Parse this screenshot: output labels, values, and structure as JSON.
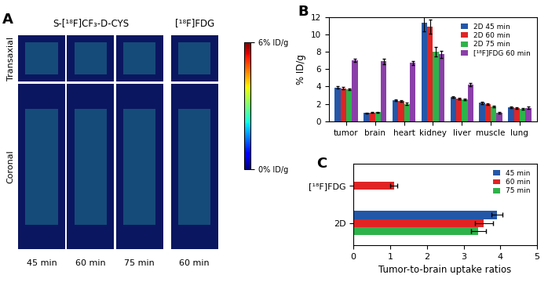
{
  "chart_data": [
    {
      "type": "image_panel",
      "panel": "A",
      "row_labels": [
        "Transaxial",
        "Coronal"
      ],
      "column_labels": [
        "45 min",
        "60 min",
        "75 min",
        "60 min"
      ],
      "groups": [
        {
          "name": "S-[¹⁸F]CF₃-D-CYS",
          "columns": 3
        },
        {
          "name": "[¹⁸F]FDG",
          "columns": 1
        }
      ],
      "colorbar": {
        "range": [
          0,
          6
        ],
        "ticks": [
          {
            "value": 0,
            "label": "0% ID/g"
          },
          {
            "value": 6,
            "label": "6% ID/g"
          }
        ]
      }
    },
    {
      "type": "bar",
      "panel": "B",
      "y_label": "% ID/g",
      "categories": [
        "tumor",
        "brain",
        "heart",
        "kidney",
        "liver",
        "muscle",
        "lung"
      ],
      "series": [
        {
          "name": "2D 45 min",
          "color": "#2457a8",
          "values": [
            3.9,
            0.95,
            2.4,
            11.3,
            2.75,
            2.1,
            1.6
          ],
          "errors": [
            0.15,
            0.05,
            0.1,
            1.0,
            0.1,
            0.1,
            0.1
          ]
        },
        {
          "name": "2D 60 min",
          "color": "#e02424",
          "values": [
            3.8,
            1.0,
            2.3,
            10.9,
            2.6,
            1.95,
            1.5
          ],
          "errors": [
            0.15,
            0.05,
            0.1,
            0.8,
            0.1,
            0.1,
            0.1
          ]
        },
        {
          "name": "2D 75 min",
          "color": "#2eb34a",
          "values": [
            3.7,
            1.05,
            2.0,
            8.0,
            2.5,
            1.7,
            1.45
          ],
          "errors": [
            0.1,
            0.05,
            0.1,
            0.5,
            0.1,
            0.1,
            0.1
          ]
        },
        {
          "name": "[¹⁸F]FDG 60 min",
          "color": "#8a3fa8",
          "values": [
            7.0,
            6.9,
            6.7,
            7.7,
            4.2,
            1.0,
            1.55
          ],
          "errors": [
            0.2,
            0.3,
            0.2,
            0.4,
            0.2,
            0.1,
            0.1
          ]
        }
      ],
      "ylim": [
        0,
        12
      ],
      "yticks": [
        0,
        2,
        4,
        6,
        8,
        10,
        12
      ],
      "legend": "upper right",
      "grid": false
    },
    {
      "type": "bar",
      "panel": "C",
      "orientation": "horizontal",
      "x_label": "Tumor-to-brain uptake ratios",
      "categories": [
        "[¹⁸F]FDG",
        "2D"
      ],
      "series": [
        {
          "name": "45 min",
          "color": "#2457a8",
          "values": [
            null,
            3.9
          ],
          "errors": [
            null,
            0.15
          ]
        },
        {
          "name": "60 min",
          "color": "#e02424",
          "values": [
            1.1,
            3.55
          ],
          "errors": [
            0.1,
            0.25
          ]
        },
        {
          "name": "75 min",
          "color": "#2eb34a",
          "values": [
            null,
            3.4
          ],
          "errors": [
            null,
            0.2
          ]
        }
      ],
      "xlim": [
        0,
        5
      ],
      "xticks": [
        0,
        1,
        2,
        3,
        4,
        5
      ],
      "legend": "upper right",
      "grid": false
    }
  ]
}
